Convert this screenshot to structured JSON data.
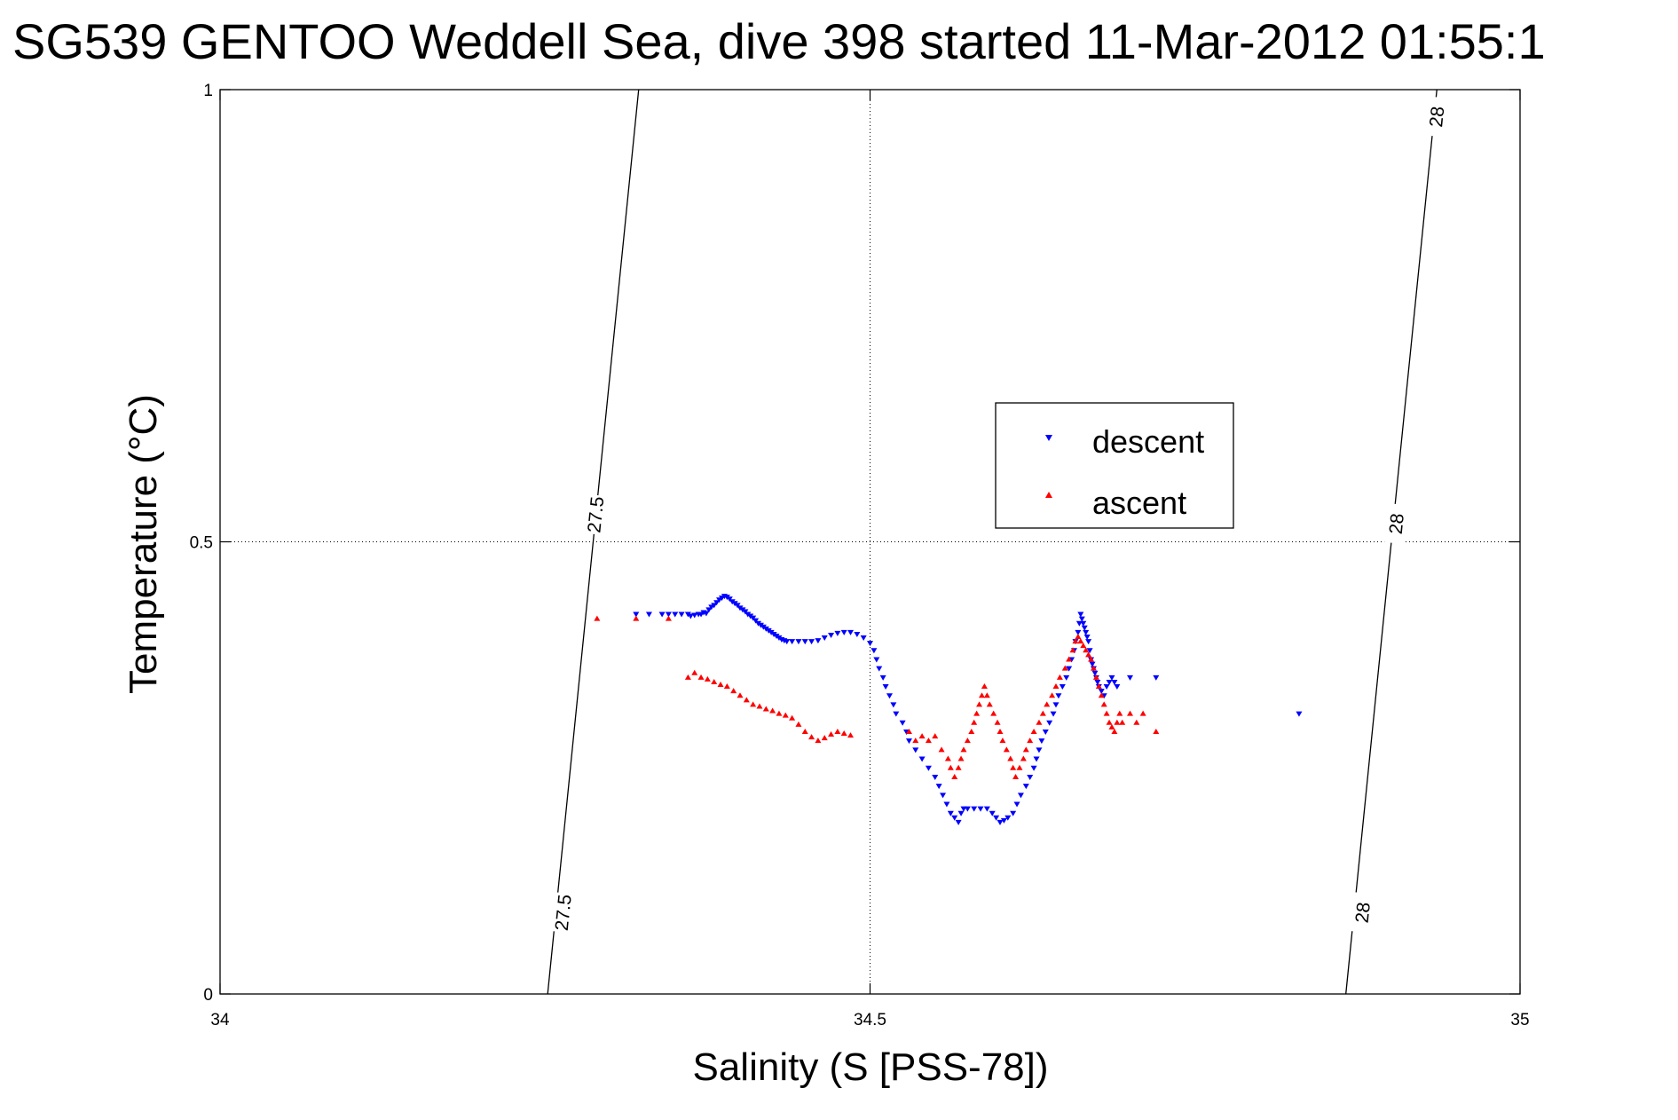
{
  "chart_data": {
    "type": "scatter",
    "title": "SG539 GENTOO Weddell Sea, dive 398 started 11-Mar-2012 01:55:1",
    "xlabel": "Salinity (S [PSS-78])",
    "ylabel": "Temperature (°C)",
    "xlim": [
      34,
      35
    ],
    "ylim": [
      0,
      1
    ],
    "xticks": [
      "34",
      "34.5",
      "35"
    ],
    "yticks": [
      "0",
      "0.5",
      "1"
    ],
    "grid": true,
    "legend_position": "center-right",
    "contours": [
      {
        "label": "27.5",
        "points": [
          [
            34.252,
            0
          ],
          [
            34.322,
            1
          ]
        ],
        "label_at": [
          [
            34.264,
            0.09
          ],
          [
            34.289,
            0.53
          ]
        ]
      },
      {
        "label": "28",
        "points": [
          [
            34.866,
            0
          ],
          [
            34.936,
            1
          ]
        ],
        "label_at": [
          [
            34.879,
            0.09
          ],
          [
            34.905,
            0.52
          ],
          [
            34.936,
            0.97
          ]
        ]
      }
    ],
    "series": [
      {
        "name": "descent",
        "marker": "triangle-down",
        "color": "#0000ff",
        "points": [
          [
            34.32,
            0.42
          ],
          [
            34.33,
            0.42
          ],
          [
            34.34,
            0.42
          ],
          [
            34.345,
            0.42
          ],
          [
            34.35,
            0.42
          ],
          [
            34.355,
            0.42
          ],
          [
            34.36,
            0.42
          ],
          [
            34.362,
            0.418
          ],
          [
            34.365,
            0.419
          ],
          [
            34.368,
            0.42
          ],
          [
            34.37,
            0.42
          ],
          [
            34.372,
            0.422
          ],
          [
            34.374,
            0.421
          ],
          [
            34.376,
            0.425
          ],
          [
            34.378,
            0.428
          ],
          [
            34.38,
            0.43
          ],
          [
            34.382,
            0.433
          ],
          [
            34.384,
            0.436
          ],
          [
            34.386,
            0.438
          ],
          [
            34.388,
            0.44
          ],
          [
            34.39,
            0.439
          ],
          [
            34.392,
            0.437
          ],
          [
            34.394,
            0.434
          ],
          [
            34.396,
            0.432
          ],
          [
            34.398,
            0.43
          ],
          [
            34.4,
            0.427
          ],
          [
            34.402,
            0.425
          ],
          [
            34.404,
            0.423
          ],
          [
            34.406,
            0.42
          ],
          [
            34.408,
            0.418
          ],
          [
            34.41,
            0.416
          ],
          [
            34.412,
            0.413
          ],
          [
            34.414,
            0.41
          ],
          [
            34.416,
            0.408
          ],
          [
            34.418,
            0.406
          ],
          [
            34.42,
            0.404
          ],
          [
            34.422,
            0.402
          ],
          [
            34.424,
            0.4
          ],
          [
            34.426,
            0.398
          ],
          [
            34.428,
            0.396
          ],
          [
            34.43,
            0.394
          ],
          [
            34.432,
            0.392
          ],
          [
            34.434,
            0.391
          ],
          [
            34.436,
            0.39
          ],
          [
            34.44,
            0.39
          ],
          [
            34.445,
            0.39
          ],
          [
            34.45,
            0.39
          ],
          [
            34.455,
            0.39
          ],
          [
            34.46,
            0.391
          ],
          [
            34.465,
            0.394
          ],
          [
            34.47,
            0.397
          ],
          [
            34.475,
            0.399
          ],
          [
            34.48,
            0.4
          ],
          [
            34.485,
            0.4
          ],
          [
            34.49,
            0.398
          ],
          [
            34.495,
            0.394
          ],
          [
            34.5,
            0.388
          ],
          [
            34.503,
            0.38
          ],
          [
            34.505,
            0.37
          ],
          [
            34.507,
            0.36
          ],
          [
            34.51,
            0.35
          ],
          [
            34.512,
            0.34
          ],
          [
            34.515,
            0.33
          ],
          [
            34.518,
            0.32
          ],
          [
            34.52,
            0.31
          ],
          [
            34.525,
            0.3
          ],
          [
            34.528,
            0.29
          ],
          [
            34.53,
            0.28
          ],
          [
            34.535,
            0.27
          ],
          [
            34.54,
            0.26
          ],
          [
            34.545,
            0.25
          ],
          [
            34.55,
            0.24
          ],
          [
            34.553,
            0.23
          ],
          [
            34.556,
            0.22
          ],
          [
            34.559,
            0.21
          ],
          [
            34.562,
            0.2
          ],
          [
            34.565,
            0.195
          ],
          [
            34.568,
            0.19
          ],
          [
            34.57,
            0.2
          ],
          [
            34.572,
            0.205
          ],
          [
            34.575,
            0.205
          ],
          [
            34.58,
            0.205
          ],
          [
            34.585,
            0.205
          ],
          [
            34.59,
            0.205
          ],
          [
            34.594,
            0.2
          ],
          [
            34.597,
            0.195
          ],
          [
            34.6,
            0.19
          ],
          [
            34.603,
            0.192
          ],
          [
            34.606,
            0.195
          ],
          [
            34.61,
            0.2
          ],
          [
            34.613,
            0.21
          ],
          [
            34.616,
            0.22
          ],
          [
            34.62,
            0.23
          ],
          [
            34.623,
            0.24
          ],
          [
            34.626,
            0.25
          ],
          [
            34.628,
            0.26
          ],
          [
            34.63,
            0.27
          ],
          [
            34.632,
            0.28
          ],
          [
            34.635,
            0.29
          ],
          [
            34.638,
            0.3
          ],
          [
            34.641,
            0.31
          ],
          [
            34.643,
            0.32
          ],
          [
            34.645,
            0.33
          ],
          [
            34.648,
            0.34
          ],
          [
            34.651,
            0.35
          ],
          [
            34.653,
            0.36
          ],
          [
            34.655,
            0.37
          ],
          [
            34.657,
            0.38
          ],
          [
            34.658,
            0.39
          ],
          [
            34.66,
            0.4
          ],
          [
            34.661,
            0.41
          ],
          [
            34.662,
            0.42
          ],
          [
            34.663,
            0.415
          ],
          [
            34.664,
            0.41
          ],
          [
            34.665,
            0.405
          ],
          [
            34.666,
            0.4
          ],
          [
            34.667,
            0.395
          ],
          [
            34.668,
            0.39
          ],
          [
            34.669,
            0.38
          ],
          [
            34.67,
            0.37
          ],
          [
            34.671,
            0.365
          ],
          [
            34.672,
            0.36
          ],
          [
            34.673,
            0.355
          ],
          [
            34.674,
            0.35
          ],
          [
            34.675,
            0.345
          ],
          [
            34.676,
            0.34
          ],
          [
            34.678,
            0.335
          ],
          [
            34.68,
            0.33
          ],
          [
            34.682,
            0.34
          ],
          [
            34.684,
            0.345
          ],
          [
            34.686,
            0.35
          ],
          [
            34.688,
            0.345
          ],
          [
            34.69,
            0.34
          ],
          [
            34.7,
            0.35
          ],
          [
            34.72,
            0.35
          ],
          [
            34.83,
            0.31
          ]
        ]
      },
      {
        "name": "ascent",
        "marker": "triangle-up",
        "color": "#ff0000",
        "points": [
          [
            34.29,
            0.415
          ],
          [
            34.32,
            0.415
          ],
          [
            34.345,
            0.415
          ],
          [
            34.36,
            0.35
          ],
          [
            34.365,
            0.355
          ],
          [
            34.37,
            0.35
          ],
          [
            34.375,
            0.348
          ],
          [
            34.38,
            0.345
          ],
          [
            34.385,
            0.342
          ],
          [
            34.39,
            0.34
          ],
          [
            34.395,
            0.335
          ],
          [
            34.4,
            0.33
          ],
          [
            34.405,
            0.325
          ],
          [
            34.41,
            0.32
          ],
          [
            34.415,
            0.318
          ],
          [
            34.42,
            0.315
          ],
          [
            34.425,
            0.313
          ],
          [
            34.43,
            0.31
          ],
          [
            34.435,
            0.308
          ],
          [
            34.44,
            0.305
          ],
          [
            34.445,
            0.298
          ],
          [
            34.45,
            0.29
          ],
          [
            34.455,
            0.284
          ],
          [
            34.46,
            0.28
          ],
          [
            34.465,
            0.283
          ],
          [
            34.47,
            0.287
          ],
          [
            34.475,
            0.29
          ],
          [
            34.48,
            0.288
          ],
          [
            34.485,
            0.286
          ],
          [
            34.53,
            0.29
          ],
          [
            34.535,
            0.28
          ],
          [
            34.54,
            0.285
          ],
          [
            34.545,
            0.28
          ],
          [
            34.55,
            0.285
          ],
          [
            34.555,
            0.27
          ],
          [
            34.56,
            0.26
          ],
          [
            34.562,
            0.25
          ],
          [
            34.565,
            0.24
          ],
          [
            34.568,
            0.25
          ],
          [
            34.57,
            0.26
          ],
          [
            34.572,
            0.27
          ],
          [
            34.575,
            0.28
          ],
          [
            34.578,
            0.29
          ],
          [
            34.58,
            0.3
          ],
          [
            34.582,
            0.31
          ],
          [
            34.584,
            0.32
          ],
          [
            34.586,
            0.33
          ],
          [
            34.588,
            0.34
          ],
          [
            34.59,
            0.33
          ],
          [
            34.592,
            0.32
          ],
          [
            34.595,
            0.31
          ],
          [
            34.598,
            0.3
          ],
          [
            34.6,
            0.29
          ],
          [
            34.602,
            0.28
          ],
          [
            34.605,
            0.27
          ],
          [
            34.608,
            0.26
          ],
          [
            34.61,
            0.25
          ],
          [
            34.612,
            0.24
          ],
          [
            34.615,
            0.25
          ],
          [
            34.618,
            0.26
          ],
          [
            34.62,
            0.27
          ],
          [
            34.623,
            0.28
          ],
          [
            34.626,
            0.29
          ],
          [
            34.63,
            0.3
          ],
          [
            34.633,
            0.31
          ],
          [
            34.636,
            0.32
          ],
          [
            34.64,
            0.33
          ],
          [
            34.643,
            0.34
          ],
          [
            34.646,
            0.35
          ],
          [
            34.65,
            0.36
          ],
          [
            34.653,
            0.37
          ],
          [
            34.656,
            0.38
          ],
          [
            34.658,
            0.39
          ],
          [
            34.66,
            0.395
          ],
          [
            34.662,
            0.39
          ],
          [
            34.664,
            0.385
          ],
          [
            34.666,
            0.38
          ],
          [
            34.668,
            0.375
          ],
          [
            34.67,
            0.37
          ],
          [
            34.672,
            0.36
          ],
          [
            34.674,
            0.35
          ],
          [
            34.676,
            0.34
          ],
          [
            34.678,
            0.33
          ],
          [
            34.68,
            0.32
          ],
          [
            34.682,
            0.31
          ],
          [
            34.684,
            0.3
          ],
          [
            34.686,
            0.295
          ],
          [
            34.688,
            0.29
          ],
          [
            34.69,
            0.3
          ],
          [
            34.692,
            0.31
          ],
          [
            34.694,
            0.3
          ],
          [
            34.7,
            0.31
          ],
          [
            34.705,
            0.3
          ],
          [
            34.71,
            0.31
          ],
          [
            34.72,
            0.29
          ]
        ]
      }
    ]
  }
}
